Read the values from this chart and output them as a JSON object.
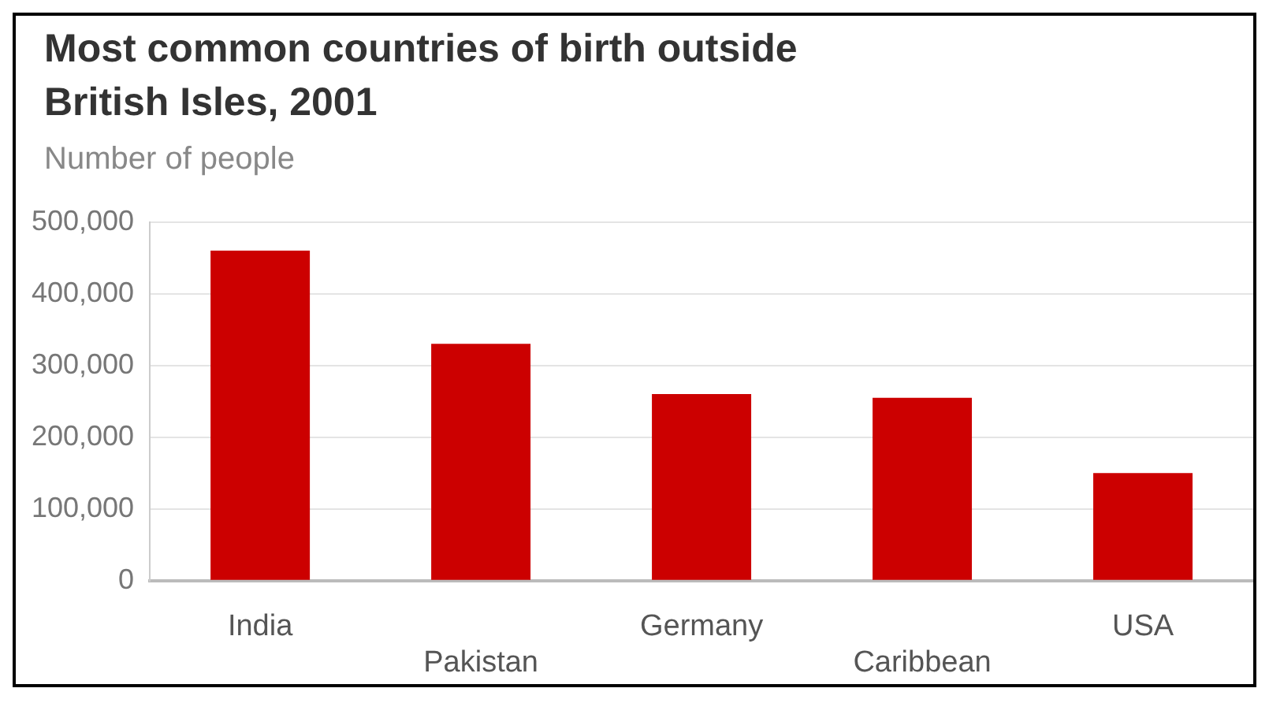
{
  "chart_data": {
    "type": "bar",
    "title": "Most common countries of birth outside British Isles, 2001",
    "ylabel": "Number of people",
    "categories": [
      "India",
      "Pakistan",
      "Germany",
      "Caribbean",
      "USA"
    ],
    "values": [
      460000,
      330000,
      260000,
      255000,
      150000
    ],
    "color": "#cc0000",
    "ylim": [
      0,
      500000
    ],
    "yticks": [
      0,
      {
        "value": 100000,
        "label": "100,000"
      },
      {
        "value": 200000,
        "label": "200,000"
      },
      {
        "value": 300000,
        "label": "300,000"
      },
      {
        "value": 400000,
        "label": "400,000"
      },
      {
        "value": 500000,
        "label": "500,000"
      }
    ],
    "grid": "y",
    "legend": false
  }
}
